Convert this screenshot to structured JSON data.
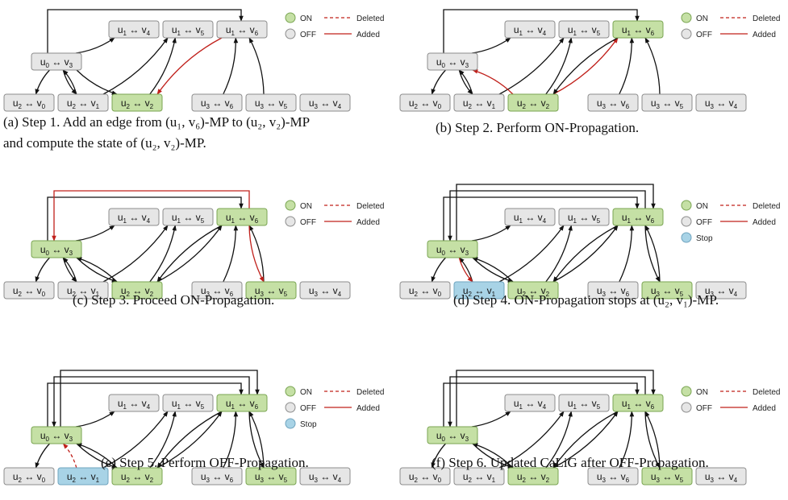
{
  "legend": {
    "on": "ON",
    "off": "OFF",
    "stop": "Stop",
    "deleted": "Deleted",
    "added": "Added"
  },
  "colors": {
    "on_fill": "#c5e0a5",
    "on_stroke": "#7aa552",
    "off_fill": "#e6e6e6",
    "off_stroke": "#8c8c8c",
    "stop_fill": "#a8d3e6",
    "stop_stroke": "#6fa4bf",
    "edge": "#111111",
    "highlight": "#c0201b"
  },
  "nodes": [
    {
      "id": "u1v4",
      "u": "1",
      "v": "4"
    },
    {
      "id": "u1v5",
      "u": "1",
      "v": "5"
    },
    {
      "id": "u1v6",
      "u": "1",
      "v": "6"
    },
    {
      "id": "u0v3",
      "u": "0",
      "v": "3"
    },
    {
      "id": "u2v0",
      "u": "2",
      "v": "0"
    },
    {
      "id": "u2v1",
      "u": "2",
      "v": "1"
    },
    {
      "id": "u2v2",
      "u": "2",
      "v": "2"
    },
    {
      "id": "u3v6",
      "u": "3",
      "v": "6"
    },
    {
      "id": "u3v5",
      "u": "3",
      "v": "5"
    },
    {
      "id": "u3v4",
      "u": "3",
      "v": "4"
    }
  ],
  "panels": [
    {
      "caption_lines": [
        "(a) Step 1. Add an edge from (u₁, v₆)-MP to (u₂, v₂)-MP",
        "and compute the state of (u₂, v₂)-MP."
      ],
      "legend_stop": false,
      "states": {
        "u2v2": "on"
      },
      "edges": [
        {
          "from": "u0v3",
          "to": "u1v4"
        },
        {
          "from": "u0v3",
          "to": "u2v0"
        },
        {
          "from": "u0v3",
          "to": "u2v1"
        },
        {
          "from": "u2v1",
          "to": "u0v3"
        },
        {
          "from": "u2v1",
          "to": "u1v5"
        },
        {
          "from": "u0v3",
          "to": "u2v2"
        },
        {
          "from": "u2v2",
          "to": "u1v5"
        },
        {
          "from": "u3v6",
          "to": "u1v6"
        },
        {
          "from": "u3v5",
          "to": "u1v6"
        },
        {
          "from": "u1v6",
          "to": "u2v2",
          "style": "added"
        },
        {
          "from": "u0v3",
          "to": "u1v6",
          "loop": 1
        }
      ]
    },
    {
      "caption_lines": [
        "(b) Step 2. Perform ON-Propagation."
      ],
      "legend_stop": false,
      "states": {
        "u2v2": "on",
        "u1v6": "on"
      },
      "edges": [
        {
          "from": "u0v3",
          "to": "u1v4"
        },
        {
          "from": "u0v3",
          "to": "u2v0"
        },
        {
          "from": "u0v3",
          "to": "u2v1"
        },
        {
          "from": "u2v1",
          "to": "u0v3"
        },
        {
          "from": "u2v1",
          "to": "u1v5"
        },
        {
          "from": "u2v2",
          "to": "u1v5"
        },
        {
          "from": "u3v6",
          "to": "u1v6"
        },
        {
          "from": "u3v5",
          "to": "u1v6"
        },
        {
          "from": "u2v2",
          "to": "u0v3",
          "style": "added"
        },
        {
          "from": "u2v2",
          "to": "u1v6",
          "style": "added"
        },
        {
          "from": "u1v6",
          "to": "u2v2"
        },
        {
          "from": "u0v3",
          "to": "u1v6",
          "loop": 1
        }
      ]
    },
    {
      "caption_lines": [
        "(c) Step 3. Proceed ON-Propagation."
      ],
      "legend_stop": false,
      "states": {
        "u2v2": "on",
        "u1v6": "on",
        "u0v3": "on",
        "u3v5": "on"
      },
      "edges": [
        {
          "from": "u0v3",
          "to": "u1v4"
        },
        {
          "from": "u0v3",
          "to": "u2v0"
        },
        {
          "from": "u0v3",
          "to": "u2v1"
        },
        {
          "from": "u2v1",
          "to": "u0v3"
        },
        {
          "from": "u2v1",
          "to": "u1v5"
        },
        {
          "from": "u2v2",
          "to": "u1v5"
        },
        {
          "from": "u2v2",
          "to": "u0v3"
        },
        {
          "from": "u0v3",
          "to": "u2v2"
        },
        {
          "from": "u2v2",
          "to": "u1v6"
        },
        {
          "from": "u1v6",
          "to": "u2v2"
        },
        {
          "from": "u3v6",
          "to": "u1v6"
        },
        {
          "from": "u3v5",
          "to": "u1v6"
        },
        {
          "from": "u1v6",
          "to": "u3v5",
          "style": "added"
        },
        {
          "from": "u0v3",
          "to": "u1v6",
          "loop": 1
        },
        {
          "from": "u1v6",
          "to": "u0v3",
          "loop": 2,
          "style": "added"
        }
      ]
    },
    {
      "caption_lines": [
        "(d) Step 4. ON-Propagation stops at (u₂, v₁)-MP."
      ],
      "legend_stop": true,
      "states": {
        "u2v2": "on",
        "u1v6": "on",
        "u0v3": "on",
        "u3v5": "on",
        "u2v1": "stop"
      },
      "edges": [
        {
          "from": "u0v3",
          "to": "u1v4"
        },
        {
          "from": "u0v3",
          "to": "u2v0"
        },
        {
          "from": "u2v1",
          "to": "u0v3"
        },
        {
          "from": "u2v1",
          "to": "u1v5"
        },
        {
          "from": "u2v2",
          "to": "u1v5"
        },
        {
          "from": "u2v2",
          "to": "u0v3"
        },
        {
          "from": "u0v3",
          "to": "u2v2"
        },
        {
          "from": "u2v2",
          "to": "u1v6"
        },
        {
          "from": "u1v6",
          "to": "u2v2"
        },
        {
          "from": "u3v6",
          "to": "u1v6"
        },
        {
          "from": "u3v5",
          "to": "u1v6"
        },
        {
          "from": "u1v6",
          "to": "u3v5"
        },
        {
          "from": "u0v3",
          "to": "u2v1",
          "style": "added"
        },
        {
          "from": "u0v3",
          "to": "u1v6",
          "loop": 1
        },
        {
          "from": "u1v6",
          "to": "u0v3",
          "loop": 2
        },
        {
          "from": "u0v3",
          "to": "u1v6",
          "loop": 3
        }
      ]
    },
    {
      "caption_lines": [
        "(e) Step 5. Perform OFF-Propagation."
      ],
      "legend_stop": true,
      "states": {
        "u2v2": "on",
        "u1v6": "on",
        "u0v3": "on",
        "u3v5": "on",
        "u2v1": "stop"
      },
      "edges": [
        {
          "from": "u0v3",
          "to": "u1v4"
        },
        {
          "from": "u0v3",
          "to": "u2v0"
        },
        {
          "from": "u2v1",
          "to": "u1v5"
        },
        {
          "from": "u2v2",
          "to": "u1v5"
        },
        {
          "from": "u2v2",
          "to": "u0v3"
        },
        {
          "from": "u0v3",
          "to": "u2v2"
        },
        {
          "from": "u2v2",
          "to": "u1v6"
        },
        {
          "from": "u1v6",
          "to": "u2v2"
        },
        {
          "from": "u3v6",
          "to": "u1v6"
        },
        {
          "from": "u3v5",
          "to": "u1v6"
        },
        {
          "from": "u1v6",
          "to": "u3v5"
        },
        {
          "from": "u2v1",
          "to": "u0v3",
          "style": "deleted"
        },
        {
          "from": "u0v3",
          "to": "u1v6",
          "loop": 1
        },
        {
          "from": "u1v6",
          "to": "u0v3",
          "loop": 2
        },
        {
          "from": "u0v3",
          "to": "u1v6",
          "loop": 3
        }
      ]
    },
    {
      "caption_lines": [
        "(f) Step 6. Updated CaLiG after OFF-Propagation."
      ],
      "legend_stop": false,
      "states": {
        "u2v2": "on",
        "u1v6": "on",
        "u0v3": "on",
        "u3v5": "on"
      },
      "edges": [
        {
          "from": "u0v3",
          "to": "u1v4"
        },
        {
          "from": "u0v3",
          "to": "u2v0"
        },
        {
          "from": "u2v1",
          "to": "u1v5"
        },
        {
          "from": "u2v2",
          "to": "u1v5"
        },
        {
          "from": "u2v2",
          "to": "u0v3"
        },
        {
          "from": "u0v3",
          "to": "u2v2"
        },
        {
          "from": "u2v2",
          "to": "u1v6"
        },
        {
          "from": "u1v6",
          "to": "u2v2"
        },
        {
          "from": "u3v6",
          "to": "u1v6"
        },
        {
          "from": "u3v5",
          "to": "u1v6"
        },
        {
          "from": "u1v6",
          "to": "u3v5"
        },
        {
          "from": "u0v3",
          "to": "u1v6",
          "loop": 1
        },
        {
          "from": "u1v6",
          "to": "u0v3",
          "loop": 2
        },
        {
          "from": "u0v3",
          "to": "u1v6",
          "loop": 3
        }
      ]
    }
  ]
}
